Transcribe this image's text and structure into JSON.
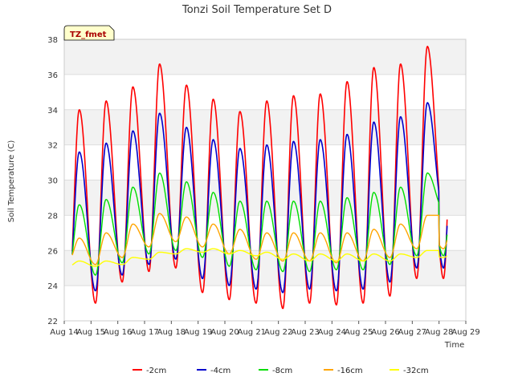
{
  "chart_data": {
    "type": "line",
    "title": "Tonzi Soil Temperature Set D",
    "xlabel": "Time",
    "ylabel": "Soil Temperature (C)",
    "site_label": "TZ_fmet",
    "ylim": [
      22,
      38
    ],
    "yticks": [
      22,
      24,
      26,
      28,
      30,
      32,
      34,
      36,
      38
    ],
    "xlim_days": [
      14,
      29
    ],
    "xtick_labels": [
      "Aug 14",
      "Aug 15",
      "Aug 16",
      "Aug 17",
      "Aug 18",
      "Aug 19",
      "Aug 20",
      "Aug 21",
      "Aug 22",
      "Aug 23",
      "Aug 24",
      "Aug 25",
      "Aug 26",
      "Aug 27",
      "Aug 28",
      "Aug 29"
    ],
    "grid": true,
    "background_bands": true,
    "legend_position": "bottom",
    "series_style": {
      "samples_per_day": 48,
      "peak_hour": 13.5
    },
    "series": [
      {
        "name": "-2cm",
        "color": "#ff0000",
        "width": 1.6,
        "start_day": 14.3,
        "end_day": 28.3,
        "daily_max": [
          34.0,
          34.5,
          35.3,
          36.6,
          35.4,
          34.6,
          33.9,
          34.5,
          34.8,
          34.9,
          35.6,
          36.4,
          36.6,
          37.6
        ],
        "daily_min": [
          23.2,
          23.0,
          24.2,
          24.8,
          25.0,
          23.6,
          23.2,
          23.0,
          22.7,
          23.0,
          22.9,
          23.0,
          23.4,
          24.4,
          27.6
        ]
      },
      {
        "name": "-4cm",
        "color": "#0000cc",
        "width": 1.6,
        "start_day": 14.3,
        "end_day": 28.3,
        "daily_max": [
          31.6,
          32.1,
          32.8,
          33.8,
          33.0,
          32.3,
          31.8,
          32.0,
          32.2,
          32.3,
          32.6,
          33.3,
          33.6,
          34.4
        ],
        "daily_min": [
          23.8,
          23.7,
          24.6,
          25.2,
          25.5,
          24.4,
          24.0,
          23.8,
          23.6,
          23.8,
          23.7,
          23.8,
          24.2,
          25.0,
          28.1
        ]
      },
      {
        "name": "-8cm",
        "color": "#00dd00",
        "width": 1.4,
        "start_day": 14.3,
        "end_day": 28.3,
        "daily_max": [
          28.6,
          28.9,
          29.6,
          30.4,
          29.9,
          29.3,
          28.8,
          28.8,
          28.8,
          28.8,
          29.0,
          29.3,
          29.6,
          30.4
        ],
        "daily_min": [
          24.8,
          24.6,
          25.3,
          25.8,
          26.0,
          25.6,
          25.1,
          24.9,
          24.8,
          24.8,
          24.9,
          24.9,
          25.2,
          25.7,
          28.3
        ]
      },
      {
        "name": "-16cm",
        "color": "#ffa500",
        "width": 1.4,
        "start_day": 14.3,
        "end_day": 28.3,
        "daily_max": [
          26.7,
          27.0,
          27.5,
          28.1,
          27.9,
          27.5,
          27.2,
          27.0,
          27.0,
          27.0,
          27.0,
          27.2,
          27.5,
          28.0
        ],
        "daily_min": [
          25.4,
          25.2,
          25.6,
          26.2,
          26.5,
          26.2,
          25.8,
          25.5,
          25.4,
          25.4,
          25.3,
          25.4,
          25.6,
          26.1,
          28.0
        ]
      },
      {
        "name": "-32cm",
        "color": "#ffff00",
        "width": 1.4,
        "start_day": 14.3,
        "end_day": 28.3,
        "daily_max": [
          25.4,
          25.4,
          25.6,
          25.9,
          26.1,
          26.1,
          26.0,
          25.9,
          25.8,
          25.8,
          25.8,
          25.8,
          25.8,
          26.0
        ],
        "daily_min": [
          25.1,
          25.1,
          25.2,
          25.5,
          25.8,
          25.9,
          25.8,
          25.7,
          25.5,
          25.4,
          25.4,
          25.4,
          25.4,
          25.6,
          26.0
        ]
      }
    ]
  }
}
